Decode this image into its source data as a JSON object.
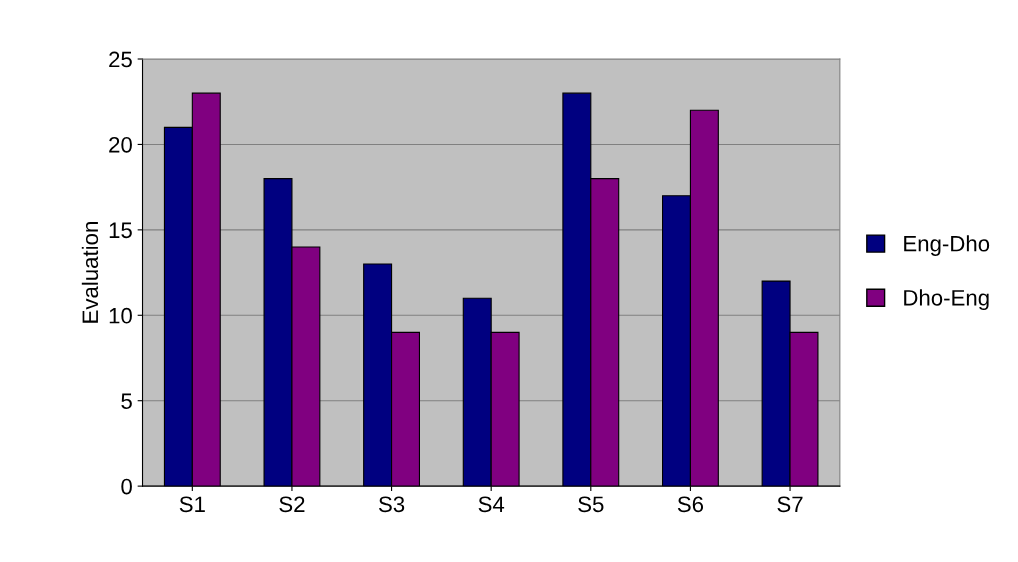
{
  "chart_data": {
    "type": "bar",
    "ylabel": "Evaluation",
    "categories": [
      "S1",
      "S2",
      "S3",
      "S4",
      "S5",
      "S6",
      "S7"
    ],
    "series": [
      {
        "name": "Eng-Dho",
        "color": "#000080",
        "values": [
          21,
          18,
          13,
          11,
          23,
          17,
          12
        ]
      },
      {
        "name": "Dho-Eng",
        "color": "#800080",
        "values": [
          23,
          14,
          9,
          9,
          18,
          22,
          9
        ]
      }
    ],
    "ylim": [
      0,
      25
    ],
    "yticks": [
      0,
      5,
      10,
      15,
      20,
      25
    ],
    "grid": "y",
    "legend": "right"
  }
}
